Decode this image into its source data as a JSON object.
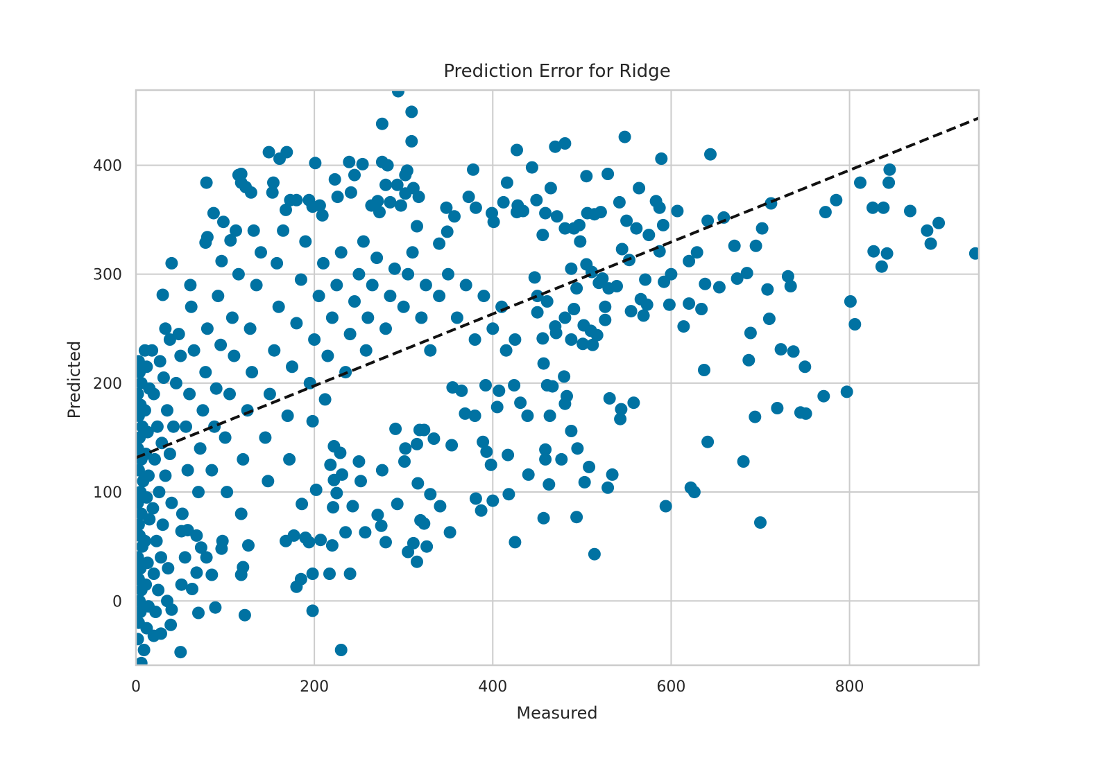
{
  "chart_data": {
    "type": "scatter",
    "title": "Prediction Error for Ridge",
    "xlabel": "Measured",
    "ylabel": "Predicted",
    "xlim": [
      0,
      945
    ],
    "ylim": [
      -59,
      469
    ],
    "xticks": [
      0,
      200,
      400,
      600,
      800
    ],
    "yticks": [
      0,
      100,
      200,
      300,
      400
    ],
    "xtick_labels": [
      "0",
      "200",
      "400",
      "600",
      "800"
    ],
    "ytick_labels": [
      "0",
      "100",
      "200",
      "300",
      "400"
    ],
    "grid": true,
    "legend": "none",
    "colors": {
      "points": "#0072a2",
      "fit_line": "#111111",
      "grid": "#cccccc",
      "spine": "#cccccc"
    },
    "best_fit": {
      "style": "dashed",
      "intercept": 131.5,
      "slope": 0.33
    },
    "points": [
      [
        294,
        468
      ],
      [
        309,
        449
      ],
      [
        276,
        438
      ],
      [
        309,
        422
      ],
      [
        548,
        426
      ],
      [
        644,
        410
      ],
      [
        589,
        406
      ],
      [
        149,
        412
      ],
      [
        169,
        412
      ],
      [
        161,
        406
      ],
      [
        427,
        414
      ],
      [
        470,
        417
      ],
      [
        481,
        420
      ],
      [
        201,
        402
      ],
      [
        239,
        403
      ],
      [
        254,
        401
      ],
      [
        444,
        398
      ],
      [
        378,
        396
      ],
      [
        304,
        395
      ],
      [
        276,
        403
      ],
      [
        845,
        396
      ],
      [
        812,
        384
      ],
      [
        844,
        384
      ],
      [
        79,
        384
      ],
      [
        118,
        392
      ],
      [
        505,
        390
      ],
      [
        529,
        392
      ],
      [
        416,
        384
      ],
      [
        465,
        379
      ],
      [
        564,
        379
      ],
      [
        868,
        358
      ],
      [
        826,
        361
      ],
      [
        838,
        361
      ],
      [
        785,
        368
      ],
      [
        773,
        357
      ],
      [
        712,
        365
      ],
      [
        659,
        352
      ],
      [
        641,
        349
      ],
      [
        607,
        358
      ],
      [
        900,
        347
      ],
      [
        887,
        340
      ],
      [
        891,
        328
      ],
      [
        941,
        319
      ],
      [
        827,
        321
      ],
      [
        842,
        319
      ],
      [
        836,
        307
      ],
      [
        702,
        342
      ],
      [
        695,
        326
      ],
      [
        671,
        326
      ],
      [
        708,
        286
      ],
      [
        731,
        298
      ],
      [
        734,
        289
      ],
      [
        685,
        301
      ],
      [
        674,
        296
      ],
      [
        654,
        288
      ],
      [
        638,
        291
      ],
      [
        634,
        268
      ],
      [
        620,
        273
      ],
      [
        614,
        252
      ],
      [
        637,
        212
      ],
      [
        801,
        275
      ],
      [
        806,
        254
      ],
      [
        710,
        259
      ],
      [
        723,
        231
      ],
      [
        737,
        229
      ],
      [
        750,
        215
      ],
      [
        689,
        246
      ],
      [
        687,
        221
      ],
      [
        719,
        177
      ],
      [
        771,
        188
      ],
      [
        797,
        192
      ],
      [
        745,
        173
      ],
      [
        751,
        172
      ],
      [
        694,
        169
      ],
      [
        641,
        146
      ],
      [
        681,
        128
      ],
      [
        622,
        104
      ],
      [
        626,
        100
      ],
      [
        594,
        87
      ],
      [
        700,
        72
      ],
      [
        514,
        43
      ],
      [
        494,
        77
      ],
      [
        457,
        76
      ],
      [
        425,
        54
      ],
      [
        418,
        98
      ],
      [
        400,
        92
      ],
      [
        387,
        83
      ],
      [
        381,
        94
      ],
      [
        440,
        116
      ],
      [
        417,
        134
      ],
      [
        398,
        125
      ],
      [
        393,
        137
      ],
      [
        389,
        146
      ],
      [
        463,
        107
      ],
      [
        459,
        139
      ],
      [
        459,
        130
      ],
      [
        477,
        130
      ],
      [
        488,
        156
      ],
      [
        495,
        140
      ],
      [
        508,
        123
      ],
      [
        503,
        109
      ],
      [
        529,
        104
      ],
      [
        534,
        116
      ],
      [
        531,
        186
      ],
      [
        544,
        176
      ],
      [
        543,
        167
      ],
      [
        558,
        182
      ],
      [
        483,
        188
      ],
      [
        481,
        181
      ],
      [
        461,
        198
      ],
      [
        467,
        197
      ],
      [
        480,
        206
      ],
      [
        457,
        218
      ],
      [
        424,
        198
      ],
      [
        431,
        182
      ],
      [
        439,
        170
      ],
      [
        464,
        170
      ],
      [
        407,
        193
      ],
      [
        405,
        178
      ],
      [
        392,
        198
      ],
      [
        380,
        170
      ],
      [
        369,
        172
      ],
      [
        365,
        193
      ],
      [
        355,
        196
      ],
      [
        354,
        143
      ],
      [
        334,
        149
      ],
      [
        318,
        157
      ],
      [
        323,
        157
      ],
      [
        315,
        144
      ],
      [
        302,
        140
      ],
      [
        291,
        158
      ],
      [
        293,
        89
      ],
      [
        311,
        53
      ],
      [
        315,
        36
      ],
      [
        305,
        45
      ],
      [
        326,
        50
      ],
      [
        319,
        74
      ],
      [
        323,
        71
      ],
      [
        330,
        98
      ],
      [
        341,
        87
      ],
      [
        352,
        63
      ],
      [
        316,
        108
      ],
      [
        301,
        128
      ],
      [
        280,
        54
      ],
      [
        275,
        69
      ],
      [
        271,
        79
      ],
      [
        276,
        120
      ],
      [
        257,
        63
      ],
      [
        235,
        63
      ],
      [
        240,
        25
      ],
      [
        217,
        25
      ],
      [
        230,
        -45
      ],
      [
        198,
        -9
      ],
      [
        198,
        25
      ],
      [
        207,
        56
      ],
      [
        220,
        51
      ],
      [
        202,
        102
      ],
      [
        225,
        99
      ],
      [
        221,
        86
      ],
      [
        243,
        87
      ],
      [
        222,
        111
      ],
      [
        231,
        116
      ],
      [
        218,
        125
      ],
      [
        222,
        142
      ],
      [
        229,
        136
      ],
      [
        250,
        128
      ],
      [
        252,
        110
      ],
      [
        186,
        89
      ],
      [
        190,
        58
      ],
      [
        194,
        54
      ],
      [
        177,
        60
      ],
      [
        168,
        55
      ],
      [
        185,
        20
      ],
      [
        180,
        13
      ],
      [
        122,
        -13
      ],
      [
        89,
        -6
      ],
      [
        70,
        -11
      ],
      [
        50,
        -47
      ],
      [
        39,
        -22
      ],
      [
        28,
        -30
      ],
      [
        9,
        -45
      ],
      [
        6,
        -57
      ],
      [
        40,
        -8
      ],
      [
        35,
        0
      ],
      [
        120,
        31
      ],
      [
        118,
        24
      ],
      [
        126,
        51
      ],
      [
        85,
        24
      ],
      [
        63,
        11
      ],
      [
        51,
        15
      ],
      [
        68,
        26
      ],
      [
        79,
        40
      ],
      [
        73,
        49
      ],
      [
        96,
        48
      ],
      [
        97,
        55
      ],
      [
        51,
        64
      ],
      [
        58,
        65
      ],
      [
        30,
        281
      ],
      [
        40,
        310
      ],
      [
        61,
        290
      ],
      [
        80,
        334
      ],
      [
        87,
        356
      ],
      [
        98,
        348
      ],
      [
        106,
        331
      ],
      [
        78,
        329
      ],
      [
        96,
        312
      ],
      [
        112,
        340
      ],
      [
        132,
        340
      ],
      [
        129,
        375
      ],
      [
        153,
        375
      ],
      [
        154,
        384
      ],
      [
        123,
        380
      ],
      [
        118,
        384
      ],
      [
        115,
        391
      ],
      [
        180,
        368
      ],
      [
        194,
        368
      ],
      [
        198,
        362
      ],
      [
        206,
        363
      ],
      [
        209,
        354
      ],
      [
        168,
        359
      ],
      [
        173,
        368
      ],
      [
        223,
        387
      ],
      [
        226,
        371
      ],
      [
        245,
        391
      ],
      [
        241,
        375
      ],
      [
        264,
        363
      ],
      [
        271,
        367
      ],
      [
        273,
        357
      ],
      [
        280,
        382
      ],
      [
        282,
        400
      ],
      [
        285,
        366
      ],
      [
        297,
        363
      ],
      [
        302,
        374
      ],
      [
        317,
        371
      ],
      [
        293,
        382
      ],
      [
        302,
        391
      ],
      [
        311,
        379
      ],
      [
        315,
        344
      ],
      [
        340,
        328
      ],
      [
        348,
        361
      ],
      [
        349,
        339
      ],
      [
        357,
        353
      ],
      [
        373,
        371
      ],
      [
        381,
        361
      ],
      [
        399,
        356
      ],
      [
        401,
        348
      ],
      [
        412,
        366
      ],
      [
        427,
        357
      ],
      [
        428,
        363
      ],
      [
        434,
        358
      ],
      [
        449,
        368
      ],
      [
        456,
        336
      ],
      [
        459,
        356
      ],
      [
        472,
        353
      ],
      [
        481,
        342
      ],
      [
        491,
        342
      ],
      [
        497,
        345
      ],
      [
        506,
        356
      ],
      [
        514,
        355
      ],
      [
        521,
        357
      ],
      [
        498,
        330
      ],
      [
        542,
        366
      ],
      [
        550,
        349
      ],
      [
        561,
        342
      ],
      [
        575,
        336
      ],
      [
        583,
        367
      ],
      [
        587,
        361
      ],
      [
        591,
        345
      ],
      [
        587,
        321
      ],
      [
        545,
        323
      ],
      [
        505,
        309
      ],
      [
        511,
        302
      ],
      [
        488,
        305
      ],
      [
        494,
        287
      ],
      [
        519,
        292
      ],
      [
        523,
        296
      ],
      [
        530,
        287
      ],
      [
        539,
        289
      ],
      [
        553,
        313
      ],
      [
        571,
        295
      ],
      [
        592,
        293
      ],
      [
        600,
        300
      ],
      [
        620,
        312
      ],
      [
        629,
        320
      ],
      [
        526,
        270
      ],
      [
        526,
        258
      ],
      [
        510,
        248
      ],
      [
        517,
        244
      ],
      [
        512,
        235
      ],
      [
        501,
        236
      ],
      [
        488,
        240
      ],
      [
        502,
        253
      ],
      [
        481,
        260
      ],
      [
        470,
        252
      ],
      [
        491,
        268
      ],
      [
        471,
        246
      ],
      [
        461,
        275
      ],
      [
        450,
        265
      ],
      [
        450,
        280
      ],
      [
        456,
        241
      ],
      [
        447,
        297
      ],
      [
        555,
        266
      ],
      [
        569,
        262
      ],
      [
        566,
        277
      ],
      [
        573,
        272
      ],
      [
        598,
        272
      ],
      [
        2,
        -35
      ],
      [
        3,
        -20
      ],
      [
        5,
        -10
      ],
      [
        4,
        0
      ],
      [
        6,
        10
      ],
      [
        3,
        20
      ],
      [
        5,
        30
      ],
      [
        2,
        40
      ],
      [
        7,
        50
      ],
      [
        4,
        60
      ],
      [
        3,
        70
      ],
      [
        6,
        80
      ],
      [
        2,
        90
      ],
      [
        5,
        100
      ],
      [
        8,
        110
      ],
      [
        3,
        120
      ],
      [
        6,
        130
      ],
      [
        2,
        140
      ],
      [
        4,
        150
      ],
      [
        7,
        160
      ],
      [
        3,
        170
      ],
      [
        5,
        180
      ],
      [
        2,
        190
      ],
      [
        6,
        200
      ],
      [
        4,
        210
      ],
      [
        3,
        220
      ],
      [
        10,
        230
      ],
      [
        12,
        -25
      ],
      [
        14,
        -5
      ],
      [
        11,
        15
      ],
      [
        13,
        35
      ],
      [
        10,
        55
      ],
      [
        15,
        75
      ],
      [
        12,
        95
      ],
      [
        14,
        115
      ],
      [
        11,
        135
      ],
      [
        13,
        155
      ],
      [
        10,
        175
      ],
      [
        15,
        195
      ],
      [
        12,
        215
      ],
      [
        20,
        -32
      ],
      [
        22,
        -10
      ],
      [
        25,
        10
      ],
      [
        20,
        25
      ],
      [
        28,
        40
      ],
      [
        23,
        55
      ],
      [
        30,
        70
      ],
      [
        19,
        85
      ],
      [
        26,
        100
      ],
      [
        33,
        115
      ],
      [
        21,
        130
      ],
      [
        29,
        145
      ],
      [
        24,
        160
      ],
      [
        35,
        175
      ],
      [
        20,
        190
      ],
      [
        31,
        205
      ],
      [
        27,
        220
      ],
      [
        38,
        240
      ],
      [
        33,
        250
      ],
      [
        18,
        230
      ],
      [
        36,
        30
      ],
      [
        40,
        90
      ],
      [
        38,
        135
      ],
      [
        42,
        160
      ],
      [
        45,
        200
      ],
      [
        50,
        225
      ],
      [
        48,
        245
      ],
      [
        55,
        40
      ],
      [
        52,
        80
      ],
      [
        58,
        120
      ],
      [
        56,
        160
      ],
      [
        60,
        190
      ],
      [
        65,
        230
      ],
      [
        62,
        270
      ],
      [
        70,
        100
      ],
      [
        72,
        140
      ],
      [
        75,
        175
      ],
      [
        78,
        210
      ],
      [
        80,
        250
      ],
      [
        68,
        60
      ],
      [
        85,
        120
      ],
      [
        88,
        160
      ],
      [
        90,
        195
      ],
      [
        95,
        235
      ],
      [
        92,
        280
      ],
      [
        100,
        150
      ],
      [
        105,
        190
      ],
      [
        110,
        225
      ],
      [
        108,
        260
      ],
      [
        115,
        300
      ],
      [
        102,
        100
      ],
      [
        120,
        130
      ],
      [
        125,
        175
      ],
      [
        130,
        210
      ],
      [
        128,
        250
      ],
      [
        135,
        290
      ],
      [
        140,
        320
      ],
      [
        118,
        80
      ],
      [
        145,
        150
      ],
      [
        150,
        190
      ],
      [
        155,
        230
      ],
      [
        160,
        270
      ],
      [
        158,
        310
      ],
      [
        165,
        340
      ],
      [
        148,
        110
      ],
      [
        170,
        170
      ],
      [
        175,
        215
      ],
      [
        180,
        255
      ],
      [
        185,
        295
      ],
      [
        190,
        330
      ],
      [
        172,
        130
      ],
      [
        195,
        200
      ],
      [
        200,
        240
      ],
      [
        205,
        280
      ],
      [
        210,
        310
      ],
      [
        198,
        165
      ],
      [
        215,
        225
      ],
      [
        220,
        260
      ],
      [
        225,
        290
      ],
      [
        230,
        320
      ],
      [
        212,
        185
      ],
      [
        240,
        245
      ],
      [
        245,
        275
      ],
      [
        250,
        300
      ],
      [
        255,
        330
      ],
      [
        235,
        210
      ],
      [
        260,
        260
      ],
      [
        265,
        290
      ],
      [
        270,
        315
      ],
      [
        258,
        230
      ],
      [
        280,
        250
      ],
      [
        285,
        280
      ],
      [
        290,
        305
      ],
      [
        300,
        270
      ],
      [
        305,
        300
      ],
      [
        310,
        320
      ],
      [
        320,
        260
      ],
      [
        325,
        290
      ],
      [
        330,
        230
      ],
      [
        340,
        280
      ],
      [
        350,
        300
      ],
      [
        360,
        260
      ],
      [
        370,
        290
      ],
      [
        380,
        240
      ],
      [
        390,
        280
      ],
      [
        400,
        250
      ],
      [
        410,
        270
      ],
      [
        415,
        230
      ],
      [
        425,
        240
      ]
    ]
  }
}
